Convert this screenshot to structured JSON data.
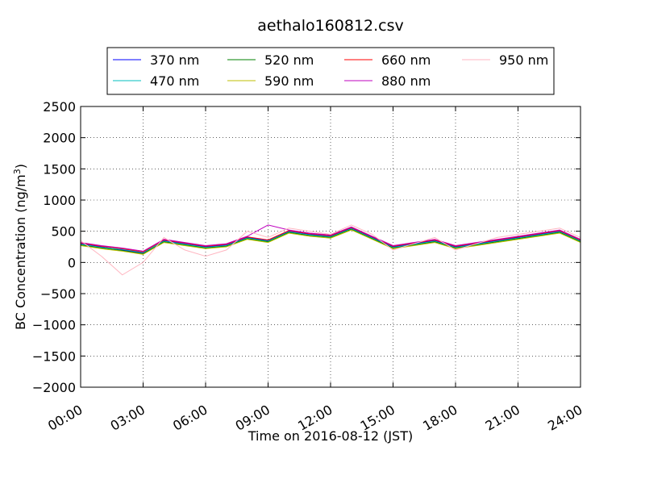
{
  "chart_data": {
    "type": "line",
    "title": "aethalo160812.csv",
    "xlabel": "Time on 2016-08-12 (JST)",
    "ylabel": "BC Concentration (ng/m³)",
    "ylabel_main": "BC Concentration (ng/m",
    "ylabel_sup": "3",
    "ylabel_close": ")",
    "xlim": [
      "00:00",
      "24:00"
    ],
    "ylim": [
      -2000,
      2500
    ],
    "grid": true,
    "legend_position": "top-center",
    "x_ticks": [
      "00:00",
      "03:00",
      "06:00",
      "09:00",
      "12:00",
      "15:00",
      "18:00",
      "21:00",
      "24:00"
    ],
    "y_ticks": [
      "−2000",
      "−1500",
      "−1000",
      "−500",
      "0",
      "500",
      "1000",
      "1500",
      "2000",
      "2500"
    ],
    "series": [
      {
        "name": "370 nm",
        "color": "#0000ff",
        "x": [
          "00:00",
          "01:00",
          "02:00",
          "03:00",
          "04:00",
          "05:00",
          "06:00",
          "07:00",
          "08:00",
          "09:00",
          "10:00",
          "11:00",
          "12:00",
          "13:00",
          "14:00",
          "15:00",
          "16:00",
          "17:00",
          "18:00",
          "19:00",
          "20:00",
          "21:00",
          "22:00",
          "23:00",
          "24:00"
        ],
        "values": [
          300,
          250,
          200,
          150,
          350,
          300,
          250,
          280,
          400,
          350,
          500,
          450,
          420,
          550,
          400,
          250,
          300,
          350,
          250,
          300,
          350,
          400,
          450,
          500,
          350
        ]
      },
      {
        "name": "470 nm",
        "color": "#00bfbf",
        "x": [
          "00:00",
          "01:00",
          "02:00",
          "03:00",
          "04:00",
          "05:00",
          "06:00",
          "07:00",
          "08:00",
          "09:00",
          "10:00",
          "11:00",
          "12:00",
          "13:00",
          "14:00",
          "15:00",
          "16:00",
          "17:00",
          "18:00",
          "19:00",
          "20:00",
          "21:00",
          "22:00",
          "23:00",
          "24:00"
        ],
        "values": [
          290,
          240,
          210,
          160,
          340,
          290,
          240,
          270,
          390,
          340,
          490,
          440,
          410,
          540,
          390,
          240,
          290,
          340,
          240,
          290,
          340,
          390,
          440,
          490,
          340
        ]
      },
      {
        "name": "520 nm",
        "color": "#008000",
        "x": [
          "00:00",
          "01:00",
          "02:00",
          "03:00",
          "04:00",
          "05:00",
          "06:00",
          "07:00",
          "08:00",
          "09:00",
          "10:00",
          "11:00",
          "12:00",
          "13:00",
          "14:00",
          "15:00",
          "16:00",
          "17:00",
          "18:00",
          "19:00",
          "20:00",
          "21:00",
          "22:00",
          "23:00",
          "24:00"
        ],
        "values": [
          280,
          230,
          190,
          140,
          330,
          280,
          230,
          260,
          380,
          330,
          480,
          430,
          400,
          530,
          380,
          230,
          280,
          330,
          230,
          280,
          330,
          380,
          430,
          480,
          330
        ]
      },
      {
        "name": "590 nm",
        "color": "#bfbf00",
        "x": [
          "00:00",
          "01:00",
          "02:00",
          "03:00",
          "04:00",
          "05:00",
          "06:00",
          "07:00",
          "08:00",
          "09:00",
          "10:00",
          "11:00",
          "12:00",
          "13:00",
          "14:00",
          "15:00",
          "16:00",
          "17:00",
          "18:00",
          "19:00",
          "20:00",
          "21:00",
          "22:00",
          "23:00",
          "24:00"
        ],
        "values": [
          270,
          220,
          180,
          130,
          320,
          270,
          220,
          250,
          370,
          320,
          470,
          420,
          390,
          520,
          370,
          220,
          270,
          320,
          220,
          270,
          320,
          370,
          420,
          470,
          320
        ]
      },
      {
        "name": "660 nm",
        "color": "#ff0000",
        "x": [
          "00:00",
          "01:00",
          "02:00",
          "03:00",
          "04:00",
          "05:00",
          "06:00",
          "07:00",
          "08:00",
          "09:00",
          "10:00",
          "11:00",
          "12:00",
          "13:00",
          "14:00",
          "15:00",
          "16:00",
          "17:00",
          "18:00",
          "19:00",
          "20:00",
          "21:00",
          "22:00",
          "23:00",
          "24:00"
        ],
        "values": [
          310,
          260,
          220,
          170,
          360,
          310,
          260,
          290,
          410,
          360,
          510,
          460,
          430,
          560,
          410,
          260,
          310,
          360,
          260,
          310,
          360,
          410,
          460,
          510,
          360
        ]
      },
      {
        "name": "880 nm",
        "color": "#bf00bf",
        "x": [
          "00:00",
          "01:00",
          "02:00",
          "03:00",
          "04:00",
          "05:00",
          "06:00",
          "07:00",
          "08:00",
          "09:00",
          "10:00",
          "11:00",
          "12:00",
          "13:00",
          "14:00",
          "15:00",
          "16:00",
          "17:00",
          "18:00",
          "19:00",
          "20:00",
          "21:00",
          "22:00",
          "23:00",
          "24:00"
        ],
        "values": [
          320,
          270,
          230,
          180,
          370,
          320,
          270,
          300,
          420,
          600,
          520,
          470,
          440,
          570,
          420,
          270,
          320,
          370,
          270,
          320,
          370,
          420,
          470,
          520,
          370
        ]
      },
      {
        "name": "950 nm",
        "color": "#ffb6c1",
        "x": [
          "00:00",
          "01:00",
          "02:00",
          "03:00",
          "04:00",
          "05:00",
          "06:00",
          "07:00",
          "08:00",
          "09:00",
          "10:00",
          "11:00",
          "12:00",
          "13:00",
          "14:00",
          "15:00",
          "16:00",
          "17:00",
          "18:00",
          "19:00",
          "20:00",
          "21:00",
          "22:00",
          "23:00",
          "24:00"
        ],
        "values": [
          350,
          100,
          -200,
          0,
          400,
          200,
          100,
          200,
          500,
          400,
          550,
          500,
          450,
          600,
          450,
          200,
          300,
          400,
          200,
          300,
          400,
          450,
          500,
          550,
          400
        ]
      }
    ]
  }
}
